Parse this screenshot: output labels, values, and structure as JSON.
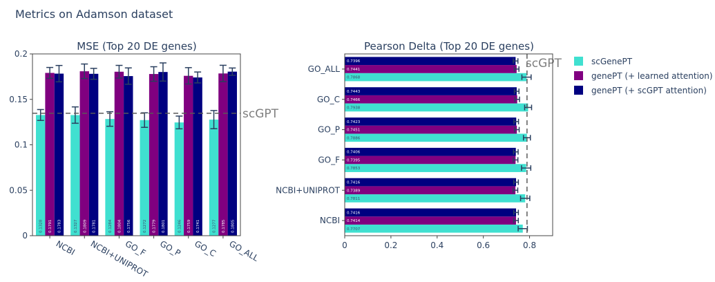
{
  "figure": {
    "title": "Metrics on Adamson dataset"
  },
  "legend": {
    "placement": "top-right",
    "items": [
      {
        "name": "scGenePT",
        "color": "#40E0D0"
      },
      {
        "name": "genePT (+ learned attention)",
        "color": "#800080"
      },
      {
        "name": "genePT (+ scGPT attention)",
        "color": "#000080"
      }
    ]
  },
  "chart_data": [
    {
      "type": "bar",
      "orientation": "vertical",
      "title": "MSE (Top 20 DE genes)",
      "xlabel": "",
      "ylabel": "",
      "categories": [
        "NCBI",
        "NCBI+UNIPROT",
        "GO_F",
        "GO_P",
        "GO_C",
        "GO_ALL"
      ],
      "ylim": [
        0,
        0.2
      ],
      "yticks": [
        0,
        0.05,
        0.1,
        0.15,
        0.2
      ],
      "ytick_labels": [
        "0",
        "0.05",
        "0.1",
        "0.15",
        "0.2"
      ],
      "grid": false,
      "series": [
        {
          "name": "scGenePT",
          "color": "#40E0D0",
          "values": [
            0.1328,
            0.1327,
            0.1284,
            0.1272,
            0.1246,
            0.1277
          ],
          "labels": [
            "0.1328",
            "0.1327",
            "0.1284",
            "0.1272",
            "0.1246",
            "0.1277"
          ],
          "errors": [
            0.006,
            0.009,
            0.008,
            0.008,
            0.007,
            0.01
          ]
        },
        {
          "name": "genePT (+ learned attention)",
          "color": "#800080",
          "values": [
            0.1791,
            0.1809,
            0.1804,
            0.1779,
            0.1759,
            0.1785
          ],
          "labels": [
            "0.1791",
            "0.1809",
            "0.1804",
            "0.1779",
            "0.1759",
            "0.1785"
          ],
          "errors": [
            0.006,
            0.008,
            0.007,
            0.008,
            0.009,
            0.009
          ]
        },
        {
          "name": "genePT (+ scGPT attention)",
          "color": "#000080",
          "values": [
            0.1783,
            0.1781,
            0.1756,
            0.1801,
            0.1741,
            0.1805
          ],
          "labels": [
            "0.1783",
            "0.1781",
            "0.1756",
            "0.1801",
            "0.1741",
            "0.1805"
          ],
          "errors": [
            0.009,
            0.006,
            0.009,
            0.01,
            0.006,
            0.004
          ]
        }
      ],
      "reference_line": {
        "label": "scGPT",
        "value": 0.1347,
        "style": "dashed"
      }
    },
    {
      "type": "bar",
      "orientation": "horizontal",
      "title": "Pearson Delta (Top 20 DE genes)",
      "xlabel": "",
      "ylabel": "",
      "categories": [
        "NCBI",
        "NCBI+UNIPROT",
        "GO_F",
        "GO_P",
        "GO_C",
        "GO_ALL"
      ],
      "xlim": [
        0,
        0.9
      ],
      "xticks": [
        0,
        0.2,
        0.4,
        0.6,
        0.8
      ],
      "xtick_labels": [
        "0",
        "0.2",
        "0.4",
        "0.6",
        "0.8"
      ],
      "grid": false,
      "series": [
        {
          "name": "scGenePT",
          "color": "#40E0D0",
          "values": [
            0.7707,
            0.7811,
            0.7853,
            0.7886,
            0.7938,
            0.7868
          ],
          "labels": [
            "0.7707",
            "0.7811",
            "0.7853",
            "0.7886",
            "0.7938",
            "0.7868"
          ],
          "errors": [
            0.02,
            0.02,
            0.02,
            0.015,
            0.015,
            0.02
          ]
        },
        {
          "name": "genePT (+ learned attention)",
          "color": "#800080",
          "values": [
            0.7414,
            0.7389,
            0.7395,
            0.7451,
            0.7466,
            0.7441
          ],
          "labels": [
            "0.7414",
            "0.7389",
            "0.7395",
            "0.7451",
            "0.7466",
            "0.7441"
          ],
          "errors": [
            0.01,
            0.01,
            0.01,
            0.01,
            0.01,
            0.01
          ]
        },
        {
          "name": "genePT (+ scGPT attention)",
          "color": "#000080",
          "values": [
            0.7416,
            0.7416,
            0.7406,
            0.7423,
            0.7443,
            0.7396
          ],
          "labels": [
            "0.7416",
            "0.7416",
            "0.7406",
            "0.7423",
            "0.7443",
            "0.7396"
          ],
          "errors": [
            0.01,
            0.01,
            0.01,
            0.01,
            0.01,
            0.01
          ]
        }
      ],
      "reference_line": {
        "label": "scGPT",
        "value": 0.789,
        "style": "dashed"
      }
    }
  ]
}
